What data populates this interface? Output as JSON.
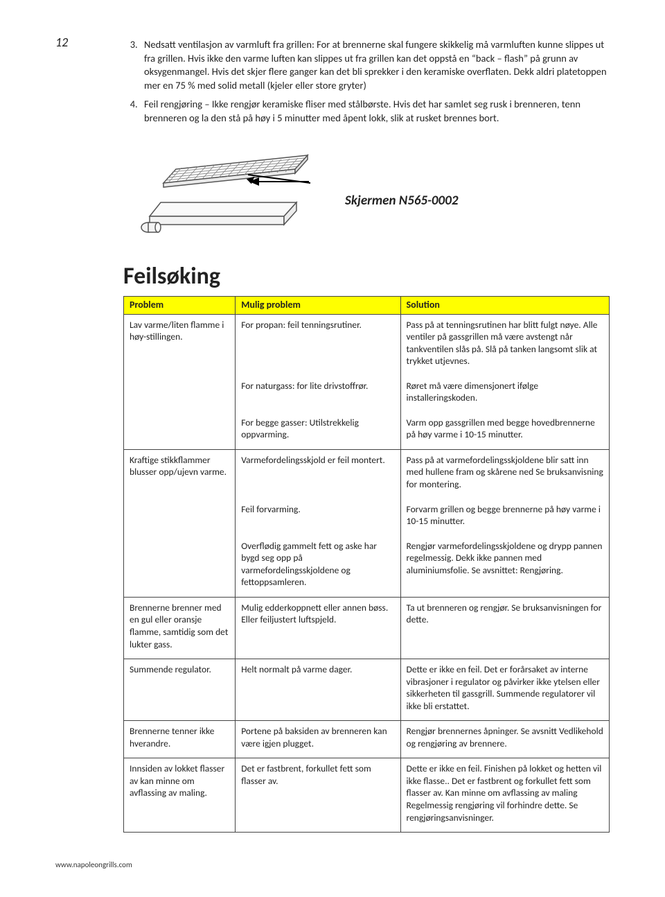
{
  "page_number": "12",
  "list_start": 3,
  "list_items": [
    "Nedsatt ventilasjon av varmluft fra grillen: For at brennerne skal fungere skikkelig må varmluften kunne slippes ut fra grillen. Hvis ikke den varme luften kan slippes ut fra grillen kan det oppstå en “back – flash” på grunn av oksygenmangel. Hvis det skjer flere ganger kan det bli sprekker i den keramiske overflaten. Dekk aldri platetoppen mer en 75 % med solid metall (kjeler eller store gryter)",
    "Feil rengjøring – Ikke rengjør keramiske fliser med stålbørste. Hvis det har samlet seg rusk i brenneren, tenn brenneren og la den stå på høy i 5 minutter med åpent lokk, slik at rusket brennes bort."
  ],
  "figure_caption": "Skjermen N565-0002",
  "section_title": "Feilsøking",
  "table": {
    "headers": [
      "Problem",
      "Mulig problem",
      "Solution"
    ],
    "groups": [
      {
        "problem": "Lav varme/liten flamme i høy-stillingen.",
        "rows": [
          {
            "cause": "For propan: feil tenningsrutiner.",
            "solution": "Pass på at tenningsrutinen har blitt fulgt nøye. Alle ventiler på gassgrillen må være avstengt når tankventilen slås på. Slå på tanken langsomt slik at trykket utjevnes."
          },
          {
            "cause": "For naturgass: for lite drivstoffrør.",
            "solution": "Røret må være dimensjonert ifølge installeringskoden."
          },
          {
            "cause": "For begge gasser: Utilstrekkelig oppvarming.",
            "solution": "Varm opp gassgrillen med begge hovedbrennerne på høy varme i 10-15 minutter."
          }
        ]
      },
      {
        "problem": "Kraftige stikkflammer blusser opp/ujevn varme.",
        "rows": [
          {
            "cause": "Varmefordelingsskjold er feil montert.",
            "solution": "Pass på at varmefordelingsskjoldene blir satt inn med hullene fram og skårene ned Se bruksanvisning for montering."
          },
          {
            "cause": "Feil forvarming.",
            "solution": "Forvarm grillen og begge brennerne på høy varme i 10-15 minutter."
          },
          {
            "cause": "Overflødig gammelt fett og aske har bygd seg opp på varmefordelingsskjoldene og fettoppsamleren.",
            "solution": "Rengjør varmefordelingsskjoldene og drypp pannen regelmessig. Dekk ikke pannen med aluminiumsfolie. Se avsnittet: Rengjøring."
          }
        ]
      },
      {
        "problem": "Brennerne brenner med en gul eller oransje flamme, samtidig som det lukter gass.",
        "rows": [
          {
            "cause": "Mulig edderkoppnett eller annen bøss. Eller feiljustert luftspjeld.",
            "solution": "Ta ut brenneren og rengjør. Se bruksanvisningen for dette."
          }
        ]
      },
      {
        "problem": "Summende regulator.",
        "rows": [
          {
            "cause": "Helt normalt på varme dager.",
            "solution": "Dette er ikke en feil. Det er forårsaket av interne vibrasjoner i regulator og påvirker ikke ytelsen eller sikkerheten til gassgrill. Summende regulatorer vil ikke bli erstattet."
          }
        ]
      },
      {
        "problem": "Brennerne tenner ikke hverandre.",
        "rows": [
          {
            "cause": "Portene på baksiden av brenneren kan være igjen plugget.",
            "solution": "Rengjør brennernes åpninger. Se avsnitt Vedlikehold og rengjøring av brennere."
          }
        ]
      },
      {
        "problem": "Innsiden av lokket flasser av kan minne om avflassing av maling.",
        "rows": [
          {
            "cause": "Det er fastbrent, forkullet fett som flasser av.",
            "solution": "Dette er ikke en feil. Finishen på lokket og hetten vil ikke flasse.. Det er fastbrent og forkullet fett som flasser av. Kan minne om avflassing av maling Regelmessig rengjøring vil forhindre dette. Se rengjøringsanvisninger."
          }
        ]
      }
    ]
  },
  "footer": "www.napoleongrills.com",
  "svg": {
    "stroke": "#555555",
    "fill_light": "#ffffff",
    "fill_shade": "#eeeeee"
  }
}
